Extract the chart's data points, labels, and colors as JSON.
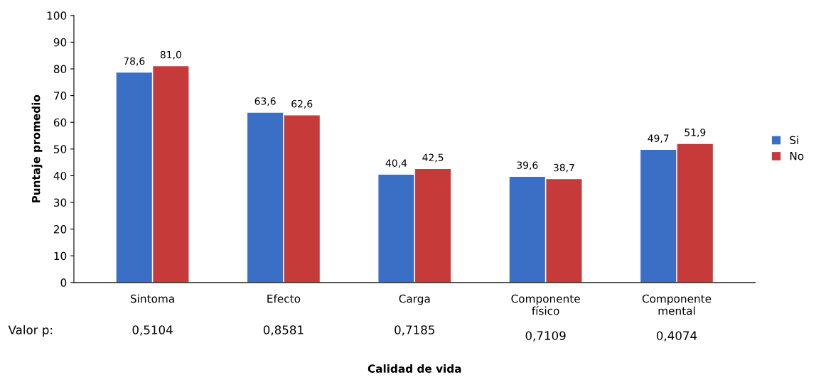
{
  "chart_data": {
    "type": "bar",
    "xlabel": "Calidad de vida",
    "ylabel": "Puntaje promedio",
    "categories": [
      "Sintoma",
      "Efecto",
      "Carga",
      "Componente\nfísico",
      "Componente\nmental"
    ],
    "series": [
      {
        "name": "Si",
        "color": "#3b6fc6",
        "values": [
          78.6,
          63.6,
          40.4,
          39.6,
          49.7
        ],
        "value_labels": [
          "78,6",
          "63,6",
          "40,4",
          "39,6",
          "49,7"
        ]
      },
      {
        "name": "No",
        "color": "#c63a3a",
        "values": [
          81.0,
          62.6,
          42.5,
          38.7,
          51.9
        ],
        "value_labels": [
          "81,0",
          "62,6",
          "42,5",
          "38,7",
          "51,9"
        ]
      }
    ],
    "ylim": [
      0,
      100
    ],
    "yticks": [
      0,
      10,
      20,
      30,
      40,
      50,
      60,
      70,
      80,
      90,
      100
    ],
    "grid": false,
    "legend": "right",
    "annotations": [
      "Valor p:",
      "0,5104",
      "0,8581",
      "0,7185",
      "0,7109",
      "0,4074"
    ]
  }
}
